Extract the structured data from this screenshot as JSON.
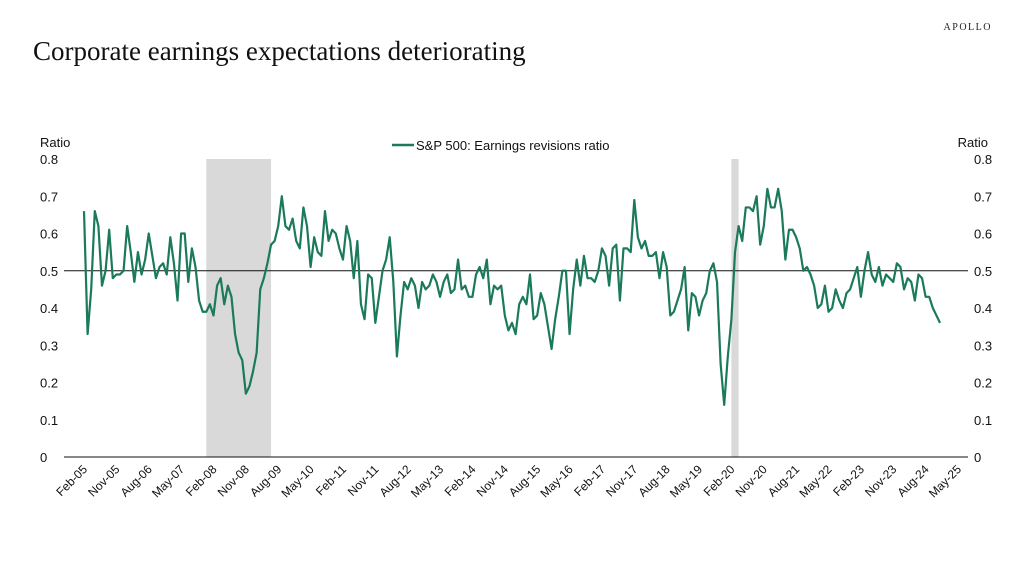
{
  "header": {
    "brand": "APOLLO",
    "title": "Corporate earnings expectations deteriorating"
  },
  "colors": {
    "series": "#1a7a5a",
    "recession": "#d9d9d9",
    "refline": "#111111"
  },
  "chart_data": {
    "type": "line",
    "title": "Corporate earnings expectations deteriorating",
    "ylabel_left": "Ratio",
    "ylabel_right": "Ratio",
    "ylim": [
      0,
      0.8
    ],
    "yticks": [
      0,
      0.1,
      0.2,
      0.3,
      0.4,
      0.5,
      0.6,
      0.7,
      0.8
    ],
    "ytick_labels": [
      "0",
      "0.1",
      "0.2",
      "0.3",
      "0.4",
      "0.5",
      "0.6",
      "0.7",
      "0.8"
    ],
    "reference_line": 0.5,
    "grid": false,
    "legend_position": "top-center",
    "x_start": "Feb-05",
    "x_end": "May-25",
    "xtick_labels": [
      "Feb-05",
      "Nov-05",
      "Aug-06",
      "May-07",
      "Feb-08",
      "Nov-08",
      "Aug-09",
      "May-10",
      "Feb-11",
      "Nov-11",
      "Aug-12",
      "May-13",
      "Feb-14",
      "Nov-14",
      "Aug-15",
      "May-16",
      "Feb-17",
      "Nov-17",
      "Aug-18",
      "May-19",
      "Feb-20",
      "Nov-20",
      "Aug-21",
      "May-22",
      "Feb-23",
      "Nov-23",
      "Aug-24",
      "May-25"
    ],
    "shaded_periods": [
      {
        "start": "Dec-07",
        "end": "Jun-09"
      },
      {
        "start": "Feb-20",
        "end": "Apr-20"
      }
    ],
    "series": [
      {
        "name": "S&P 500: Earnings revisions ratio",
        "values": [
          0.66,
          0.33,
          0.45,
          0.66,
          0.62,
          0.46,
          0.5,
          0.61,
          0.48,
          0.49,
          0.49,
          0.5,
          0.62,
          0.55,
          0.47,
          0.55,
          0.49,
          0.53,
          0.6,
          0.54,
          0.48,
          0.51,
          0.52,
          0.49,
          0.59,
          0.52,
          0.42,
          0.6,
          0.6,
          0.47,
          0.56,
          0.51,
          0.42,
          0.39,
          0.39,
          0.41,
          0.38,
          0.46,
          0.48,
          0.41,
          0.46,
          0.43,
          0.33,
          0.28,
          0.26,
          0.17,
          0.19,
          0.23,
          0.28,
          0.45,
          0.48,
          0.52,
          0.57,
          0.58,
          0.62,
          0.7,
          0.62,
          0.61,
          0.64,
          0.58,
          0.56,
          0.67,
          0.62,
          0.51,
          0.59,
          0.55,
          0.54,
          0.66,
          0.58,
          0.61,
          0.6,
          0.56,
          0.53,
          0.62,
          0.58,
          0.48,
          0.58,
          0.41,
          0.37,
          0.49,
          0.48,
          0.36,
          0.43,
          0.5,
          0.53,
          0.59,
          0.47,
          0.27,
          0.38,
          0.47,
          0.45,
          0.48,
          0.46,
          0.4,
          0.47,
          0.45,
          0.46,
          0.49,
          0.47,
          0.43,
          0.47,
          0.49,
          0.44,
          0.45,
          0.53,
          0.45,
          0.46,
          0.43,
          0.43,
          0.49,
          0.51,
          0.48,
          0.53,
          0.41,
          0.46,
          0.45,
          0.46,
          0.38,
          0.34,
          0.36,
          0.33,
          0.41,
          0.43,
          0.41,
          0.49,
          0.37,
          0.38,
          0.44,
          0.41,
          0.35,
          0.29,
          0.37,
          0.43,
          0.5,
          0.5,
          0.33,
          0.45,
          0.53,
          0.46,
          0.54,
          0.48,
          0.48,
          0.47,
          0.5,
          0.56,
          0.54,
          0.46,
          0.56,
          0.57,
          0.42,
          0.56,
          0.56,
          0.55,
          0.69,
          0.59,
          0.56,
          0.58,
          0.54,
          0.54,
          0.55,
          0.48,
          0.55,
          0.51,
          0.38,
          0.39,
          0.42,
          0.45,
          0.51,
          0.34,
          0.44,
          0.43,
          0.38,
          0.42,
          0.44,
          0.5,
          0.52,
          0.47,
          0.25,
          0.14,
          0.27,
          0.37,
          0.55,
          0.62,
          0.58,
          0.67,
          0.67,
          0.66,
          0.7,
          0.57,
          0.62,
          0.72,
          0.67,
          0.67,
          0.72,
          0.66,
          0.53,
          0.61,
          0.61,
          0.59,
          0.56,
          0.5,
          0.51,
          0.49,
          0.46,
          0.4,
          0.41,
          0.46,
          0.39,
          0.4,
          0.45,
          0.42,
          0.4,
          0.44,
          0.45,
          0.48,
          0.51,
          0.43,
          0.5,
          0.55,
          0.49,
          0.47,
          0.51,
          0.46,
          0.49,
          0.48,
          0.47,
          0.52,
          0.51,
          0.45,
          0.48,
          0.47,
          0.42,
          0.49,
          0.48,
          0.43,
          0.43,
          0.4,
          0.38,
          0.36
        ]
      }
    ]
  }
}
